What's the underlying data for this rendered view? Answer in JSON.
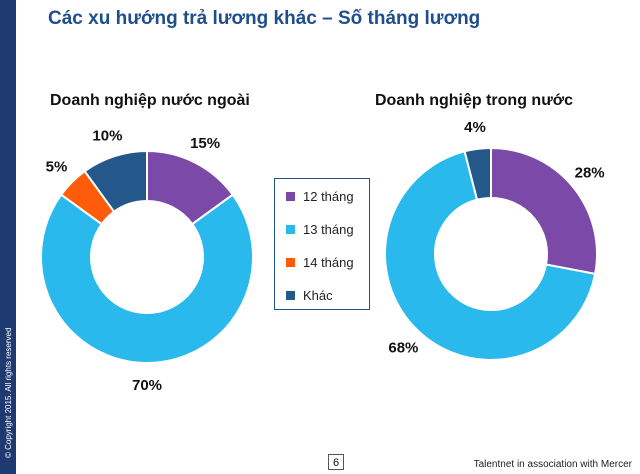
{
  "slide": {
    "title": "Các xu hướng trả lương khác – Số tháng lương",
    "copyright": "© Copyright 2015. All rights reserved",
    "page_number": "6",
    "footer": "Talentnet in association with Mercer"
  },
  "colors": {
    "12_thang": "#7b4aa8",
    "13_thang": "#29b9ec",
    "14_thang": "#fe5c0a",
    "khac": "#24578a"
  },
  "chart_data": [
    {
      "type": "pie",
      "donut": true,
      "title": "Doanh nghiệp nước ngoài",
      "categories": [
        "12 tháng",
        "13 tháng",
        "14 tháng",
        "Khác"
      ],
      "values": [
        15,
        70,
        5,
        10
      ],
      "labels": [
        "15%",
        "70%",
        "5%",
        "10%"
      ],
      "legend": "center"
    },
    {
      "type": "pie",
      "donut": true,
      "title": "Doanh nghiệp trong nước",
      "categories": [
        "12 tháng",
        "13 tháng",
        "14 tháng",
        "Khác"
      ],
      "values": [
        28,
        68,
        0,
        4
      ],
      "labels": [
        "28%",
        "68%",
        "",
        "4%"
      ],
      "legend": "center"
    }
  ]
}
